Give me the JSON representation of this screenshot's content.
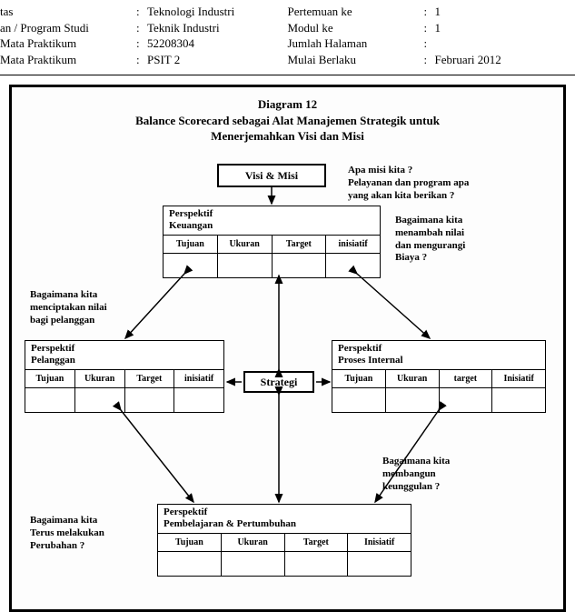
{
  "header": {
    "left": [
      {
        "label": "tas",
        "value": "Teknologi Industri"
      },
      {
        "label": "an / Program Studi",
        "value": "Teknik Industri"
      },
      {
        "label": " Mata Praktikum",
        "value": "52208304"
      },
      {
        "label": " Mata Praktikum",
        "value": "PSIT 2"
      }
    ],
    "right": [
      {
        "label": "Pertemuan  ke",
        "value": "1"
      },
      {
        "label": "Modul ke",
        "value": "1"
      },
      {
        "label": "Jumlah Halaman",
        "value": ""
      },
      {
        "label": "Mulai Berlaku",
        "value": "Februari 2012"
      }
    ]
  },
  "diagram": {
    "title_line1": "Diagram 12",
    "title_line2": "Balance Scorecard sebagai Alat Manajemen Strategik untuk",
    "title_line3": "Menerjemahkan Visi dan Misi",
    "visi_misi": "Visi & Misi",
    "strategi": "Strategi",
    "annotations": {
      "misi": "Apa misi kita ?\nPelayanan  dan program apa\nyang akan kita berikan ?",
      "keuangan_q": "Bagaimana kita\nmenambah nilai\ndan mengurangi\nBiaya ?",
      "pelanggan_q": "Bagaimana kita\nmenciptakan nilai\nbagi pelanggan",
      "keunggulan_q": "Bagaimana kita\nmembangun\nkeunggulan  ?",
      "perubahan_q": "Bagaimana kita\nTerus melakukan\nPerubahan ?"
    },
    "perspectives": {
      "keuangan": {
        "title": "Perspektif\nKeuangan",
        "cols": [
          "Tujuan",
          "Ukuran",
          "Target",
          "inisiatif"
        ]
      },
      "pelanggan": {
        "title": "Perspektif\nPelanggan",
        "cols": [
          "Tujuan",
          "Ukuran",
          "Target",
          "inisiatif"
        ]
      },
      "internal": {
        "title": "Perspektif\nProses Internal",
        "cols": [
          "Tujuan",
          "Ukuran",
          "target",
          "Inisiatif"
        ]
      },
      "pembelajaran": {
        "title": "Perspektif\nPembelajaran & Pertumbuhan",
        "cols": [
          "Tujuan",
          "Ukuran",
          "Target",
          "Inisiatif"
        ]
      }
    }
  },
  "style": {
    "border_color": "#000000",
    "bg_color": "#ffffff",
    "font_family": "Times New Roman",
    "title_fontsize": 13,
    "ann_fontsize": 11,
    "col_fontsize": 10
  }
}
